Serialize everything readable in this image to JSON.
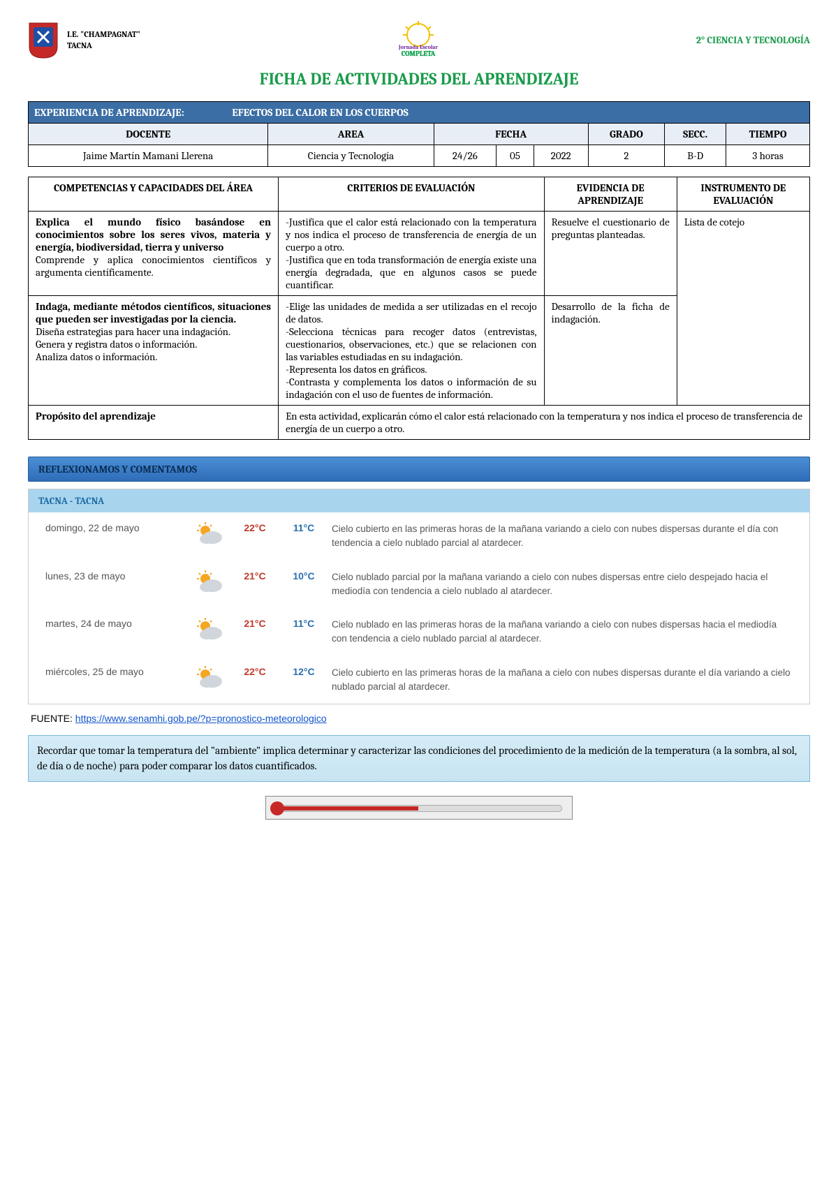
{
  "header": {
    "school_line1": "I.E. \"CHAMPAGNAT\"",
    "school_line2": "TACNA",
    "grade_badge": "2°",
    "subject_badge": "CIENCIA Y TECNOLOGÍA"
  },
  "title": "FICHA DE ACTIVIDADES DEL APRENDIZAJE",
  "experience": {
    "label": "EXPERIENCIA DE APRENDIZAJE:",
    "value": "EFECTOS DEL CALOR EN LOS CUERPOS"
  },
  "info_headers": {
    "docente": "DOCENTE",
    "area": "AREA",
    "fecha": "FECHA",
    "grado": "GRADO",
    "secc": "SECC.",
    "tiempo": "TIEMPO"
  },
  "info_values": {
    "docente": "Jaime Martín Mamani Llerena",
    "area": "Ciencia y Tecnología",
    "fecha_d": "24/26",
    "fecha_m": "05",
    "fecha_y": "2022",
    "grado": "2",
    "secc": "B-D",
    "tiempo": "3 horas"
  },
  "comp_headers": {
    "competencias": "COMPETENCIAS Y CAPACIDADES DEL ÁREA",
    "criterios": "CRITERIOS DE EVALUACIÓN",
    "evidencia": "EVIDENCIA DE APRENDIZAJE",
    "instrumento": "INSTRUMENTO DE EVALUACIÓN"
  },
  "comp_rows": [
    {
      "competencia_bold": "Explica el mundo físico basándose en conocimientos sobre los seres vivos, materia y energía, biodiversidad, tierra y universo",
      "competencia_rest": "Comprende y aplica conocimientos científicos y argumenta científicamente.",
      "criterios": "-Justifica que el calor está relacionado con la temperatura y nos indica el proceso de transferencia de energía de un cuerpo a otro.\n-Justifica que en toda transformación de energía existe una energía degradada, que en algunos casos se puede cuantificar.",
      "evidencia": "Resuelve el cuestionario de preguntas planteadas.",
      "instrumento": "Lista de cotejo"
    },
    {
      "competencia_bold": "Indaga, mediante métodos científicos, situaciones que pueden ser investigadas por la ciencia.",
      "competencia_rest": "Diseña estrategias para hacer una indagación.\nGenera y registra datos o información.\nAnaliza datos o información.",
      "criterios": "-Elige las unidades de medida a ser utilizadas en el recojo de datos.\n-Selecciona técnicas para recoger datos (entrevistas, cuestionarios, observaciones, etc.) que se relacionen con las variables estudiadas en su indagación.\n-Representa los datos en gráficos.\n-Contrasta y complementa los datos o información de su indagación con el uso de fuentes de información.",
      "evidencia": "Desarrollo de la ficha de indagación.",
      "instrumento": ""
    }
  ],
  "proposito": {
    "label": "Propósito del aprendizaje",
    "text": "En esta actividad, explicarán cómo el calor está relacionado con la temperatura y nos indica el proceso de transferencia de energía de un cuerpo a otro."
  },
  "section_title": "REFLEXIONAMOS Y COMENTAMOS",
  "weather": {
    "title": "TACNA - TACNA",
    "rows": [
      {
        "day": "domingo, 22 de mayo",
        "icon": "partly-sunny",
        "high": "22°C",
        "low": "11°C",
        "desc": "Cielo cubierto en las primeras horas de la mañana variando a cielo con nubes dispersas durante el día con tendencia a cielo nublado parcial al atardecer."
      },
      {
        "day": "lunes, 23 de mayo",
        "icon": "partly-sunny",
        "high": "21°C",
        "low": "10°C",
        "desc": "Cielo nublado parcial por la mañana variando a cielo con nubes dispersas entre cielo despejado hacia el mediodía con tendencia a cielo nublado al atardecer."
      },
      {
        "day": "martes, 24 de mayo",
        "icon": "partly-sunny",
        "high": "21°C",
        "low": "11°C",
        "desc": "Cielo nublado en las primeras horas de la mañana variando a cielo con nubes dispersas hacia el mediodía con tendencia a cielo nublado parcial al atardecer."
      },
      {
        "day": "miércoles, 25 de mayo",
        "icon": "partly-sunny",
        "high": "22°C",
        "low": "12°C",
        "desc": "Cielo cubierto en las primeras horas de la mañana a cielo con nubes dispersas durante el día variando a cielo nublado parcial al atardecer."
      }
    ]
  },
  "fuente": {
    "label": "FUENTE: ",
    "url_text": "https://www.senamhi.gob.pe/?p=pronostico-meteorologico"
  },
  "note": "Recordar que tomar la temperatura del \"ambiente\" implica determinar y caracterizar las condiciones del procedimiento de la medición de la temperatura (a la sombra, al sol, de día o de noche) para poder comparar los datos cuantificados.",
  "colors": {
    "green": "#1a9c4b",
    "blue_bar": "#3b6ea5",
    "header_bg": "#e8eef5",
    "weather_title_bg": "#a9d4ee",
    "weather_title_fg": "#1d6ea5",
    "high_temp": "#c0392b",
    "low_temp": "#2a6fb0"
  }
}
